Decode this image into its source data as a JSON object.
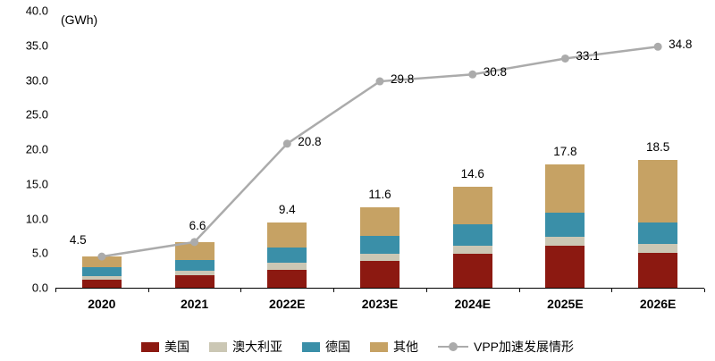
{
  "chart_data": {
    "type": "combo",
    "bar_mode": "stacked",
    "unit_label": "(GWh)",
    "categories": [
      "2020",
      "2021",
      "2022E",
      "2023E",
      "2024E",
      "2025E",
      "2026E"
    ],
    "y_axis": {
      "min": 0,
      "max": 40,
      "step": 5,
      "tick_labels": [
        "0.0",
        "5.0",
        "10.0",
        "15.0",
        "20.0",
        "25.0",
        "30.0",
        "35.0",
        "40.0"
      ]
    },
    "bar_series": [
      {
        "name": "美国",
        "color": "#8C1911",
        "values": [
          1.2,
          1.8,
          2.6,
          3.9,
          4.9,
          6.1,
          5.0
        ]
      },
      {
        "name": "澳大利亚",
        "color": "#CBC7B4",
        "values": [
          0.5,
          0.6,
          1.0,
          1.0,
          1.2,
          1.2,
          1.3
        ]
      },
      {
        "name": "德国",
        "color": "#3A8FA8",
        "values": [
          1.3,
          1.6,
          2.2,
          2.6,
          3.1,
          3.5,
          3.1
        ]
      },
      {
        "name": "其他",
        "color": "#C6A264",
        "values": [
          1.5,
          2.6,
          3.6,
          4.1,
          5.4,
          7.0,
          9.1
        ]
      }
    ],
    "bar_totals": [
      4.5,
      6.6,
      9.4,
      11.6,
      14.6,
      17.8,
      18.5
    ],
    "bar_total_labels": [
      "",
      "",
      "9.4",
      "11.6",
      "14.6",
      "17.8",
      "18.5"
    ],
    "line_series": {
      "name": "VPP加速发展情形",
      "color": "#ABABAB",
      "values": [
        4.5,
        6.6,
        20.8,
        29.8,
        30.8,
        33.1,
        34.8
      ],
      "point_labels": [
        "4.5",
        "6.6",
        "20.8",
        "29.8",
        "30.8",
        "33.1",
        "34.8"
      ]
    },
    "legend_position": "bottom",
    "grid": false
  }
}
